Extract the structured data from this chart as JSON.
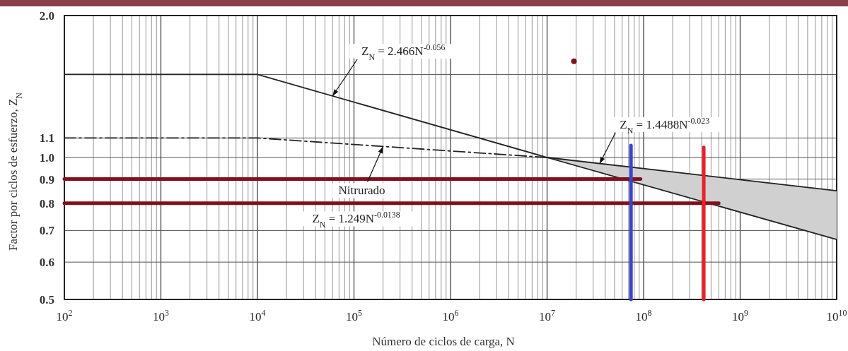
{
  "chart_data": {
    "type": "line",
    "xlabel": "Número de ciclos de carga, N",
    "ylabel": "Factor por ciclos de esfuerzo, Z$_{N}$",
    "log": "xy",
    "grid": true,
    "xlim": [
      100,
      10000000000
    ],
    "xticks": [
      {
        "value": 100,
        "label": "10$^{2}$"
      },
      {
        "value": 1000,
        "label": "10$^{3}$"
      },
      {
        "value": 10000,
        "label": "10$^{4}$"
      },
      {
        "value": 100000,
        "label": "10$^{5}$"
      },
      {
        "value": 1000000,
        "label": "10$^{6}$"
      },
      {
        "value": 10000000,
        "label": "10$^{7}$"
      },
      {
        "value": 100000000,
        "label": "10$^{8}$"
      },
      {
        "value": 1000000000,
        "label": "10$^{9}$"
      },
      {
        "value": 10000000000,
        "label": "10$^{10}$"
      }
    ],
    "ylim": [
      0.5,
      2.0
    ],
    "yticks": [
      {
        "value": 0.5,
        "label": "0.5"
      },
      {
        "value": 0.6,
        "label": "0.6"
      },
      {
        "value": 0.7,
        "label": "0.7"
      },
      {
        "value": 0.8,
        "label": "0.8"
      },
      {
        "value": 0.9,
        "label": "0.9"
      },
      {
        "value": 1.0,
        "label": "1.0"
      },
      {
        "value": 1.1,
        "label": "1.1"
      },
      {
        "value": 1.5,
        "label": null
      },
      {
        "value": 2.0,
        "label": "2.0"
      }
    ],
    "series": [
      {
        "color": "#222222",
        "line_style": "solid",
        "x": [
          100,
          10000,
          10000000,
          10000000000
        ],
        "values": [
          1.5,
          1.5,
          1.0,
          0.67
        ]
      },
      {
        "color": "#222222",
        "line_style": "dashed",
        "x": [
          100,
          10000,
          10000000
        ],
        "values": [
          1.1,
          1.1,
          1.0
        ]
      },
      {
        "color": "#222222",
        "line_style": "solid",
        "x": [
          10000000,
          10000000000
        ],
        "values": [
          1.0,
          0.85
        ],
        "lower": [
          1.0,
          0.67
        ],
        "upper": [
          1.0,
          0.85
        ]
      },
      {
        "color": "#80101a",
        "line_style": "solid",
        "x": [
          100,
          93000000
        ],
        "values": [
          0.9,
          0.9
        ]
      },
      {
        "color": "#80101a",
        "line_style": "solid",
        "x": [
          100,
          600000000
        ],
        "values": [
          0.8,
          0.8
        ]
      },
      {
        "color": "#3b44c8",
        "line_style": "solid",
        "x": [
          74000000,
          74000000
        ],
        "values": [
          0.5,
          1.06
        ]
      },
      {
        "color": "#e8202a",
        "line_style": "solid",
        "x": [
          420000000,
          420000000
        ],
        "values": [
          0.5,
          1.05
        ]
      },
      {
        "type": "scatter",
        "color": "#80101a",
        "marker": "circle",
        "x": [
          19000000
        ],
        "values": [
          1.6
        ]
      }
    ],
    "annotations": [
      {
        "text": "Z$_{N}$ = 2.466N$^{-0.056}$",
        "x": 60000,
        "y": 1.35
      },
      {
        "text": "Z$_{N}$ = 1.4488N$^{-0.023}$",
        "x": 35000000,
        "y": 0.97
      },
      {
        "text": "Nitrurado",
        "x": 200000,
        "y": 1.055
      },
      "Z$_{N}$ = 1.249N$^{-0.0138}$"
    ]
  }
}
